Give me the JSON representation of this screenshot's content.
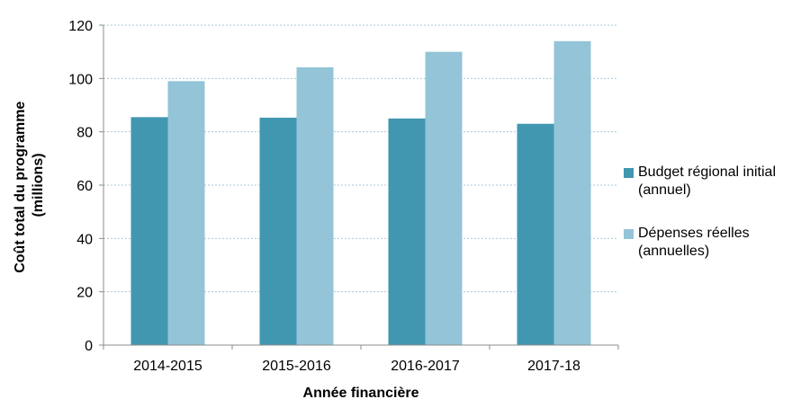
{
  "chart_data": {
    "type": "bar",
    "categories": [
      "2014-2015",
      "2015-2016",
      "2016-2017",
      "2017-18"
    ],
    "series": [
      {
        "name": "Budget régional initial (annuel)",
        "legend_lines": [
          "Budget régional initial",
          "(annuel)"
        ],
        "values": [
          85.5,
          85.3,
          85.0,
          83.0
        ],
        "color": "#4197b0"
      },
      {
        "name": "Dépenses réelles (annuelles)",
        "legend_lines": [
          "Dépenses réelles",
          "(annuelles)"
        ],
        "values": [
          99.0,
          104.2,
          110.0,
          114.0
        ],
        "color": "#93c4d7"
      }
    ],
    "xlabel": "Année financière",
    "ylabel_lines": [
      "Coût total du programme",
      "(millions)"
    ],
    "ylim": [
      0,
      120
    ],
    "yticks": [
      0,
      20,
      40,
      60,
      80,
      100,
      120
    ],
    "grid": true,
    "legend_position": "right"
  }
}
